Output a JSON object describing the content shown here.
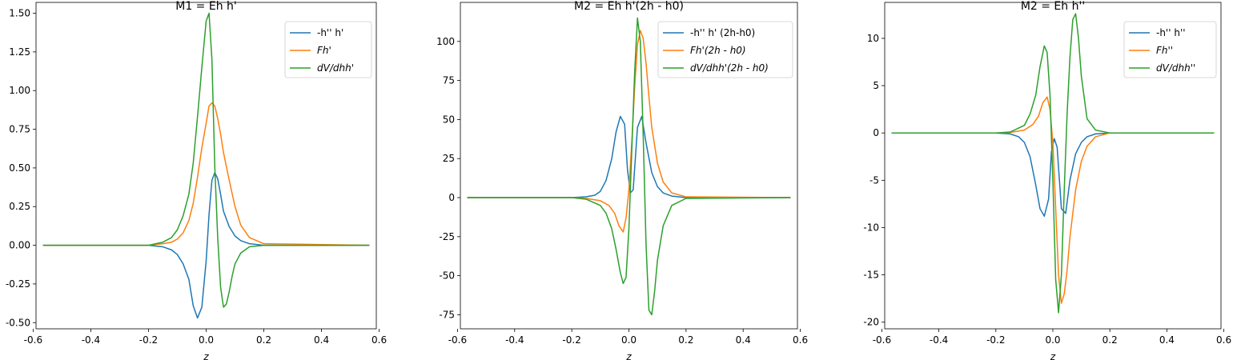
{
  "figure": {
    "colors": {
      "c0": "#1f77b4",
      "c1": "#ff7f0e",
      "c2": "#2ca02c",
      "axis": "#000000"
    }
  },
  "chart_data": [
    {
      "type": "line",
      "title": "M1 = Eh h'",
      "xlabel": "z",
      "ylabel": "",
      "xlim": [
        -0.59,
        0.59
      ],
      "ylim": [
        -0.54,
        1.57
      ],
      "xticks": [
        -0.6,
        -0.4,
        -0.2,
        0.0,
        0.2,
        0.4,
        0.6
      ],
      "xtick_labels": [
        "-0.6",
        "-0.4",
        "-0.2",
        "0.0",
        "0.2",
        "0.4",
        "0.6"
      ],
      "yticks": [
        -0.5,
        -0.25,
        0.0,
        0.25,
        0.5,
        0.75,
        1.0,
        1.25,
        1.5
      ],
      "ytick_labels": [
        "-0.50",
        "-0.25",
        "0.00",
        "0.25",
        "0.50",
        "0.75",
        "1.00",
        "1.25",
        "1.50"
      ],
      "grid": false,
      "legend_position": "top-right",
      "series": [
        {
          "name": "-h'' h'",
          "color": "#1f77b4",
          "x": [
            -0.566,
            -0.2,
            -0.15,
            -0.12,
            -0.1,
            -0.08,
            -0.06,
            -0.045,
            -0.03,
            -0.015,
            0.0,
            0.01,
            0.02,
            0.03,
            0.04,
            0.05,
            0.06,
            0.08,
            0.1,
            0.12,
            0.15,
            0.2,
            0.566
          ],
          "y": [
            0.0,
            0.0,
            -0.01,
            -0.03,
            -0.06,
            -0.12,
            -0.22,
            -0.39,
            -0.47,
            -0.4,
            -0.1,
            0.2,
            0.42,
            0.47,
            0.43,
            0.33,
            0.22,
            0.12,
            0.06,
            0.03,
            0.01,
            0.0,
            0.0
          ]
        },
        {
          "name": "Fh'",
          "color": "#ff7f0e",
          "x": [
            -0.566,
            -0.2,
            -0.15,
            -0.12,
            -0.1,
            -0.08,
            -0.06,
            -0.045,
            -0.03,
            -0.015,
            0.0,
            0.01,
            0.02,
            0.03,
            0.04,
            0.05,
            0.06,
            0.08,
            0.1,
            0.12,
            0.15,
            0.2,
            0.566
          ],
          "y": [
            0.0,
            0.0,
            0.01,
            0.02,
            0.04,
            0.08,
            0.16,
            0.27,
            0.44,
            0.63,
            0.79,
            0.9,
            0.92,
            0.9,
            0.82,
            0.72,
            0.6,
            0.42,
            0.25,
            0.13,
            0.05,
            0.01,
            0.0
          ]
        },
        {
          "name": "dV/dhh'",
          "color": "#2ca02c",
          "x": [
            -0.566,
            -0.2,
            -0.15,
            -0.12,
            -0.1,
            -0.08,
            -0.06,
            -0.045,
            -0.03,
            -0.015,
            0.0,
            0.01,
            0.02,
            0.03,
            0.04,
            0.05,
            0.06,
            0.07,
            0.08,
            0.09,
            0.1,
            0.12,
            0.15,
            0.2,
            0.566
          ],
          "y": [
            0.0,
            0.0,
            0.02,
            0.05,
            0.1,
            0.19,
            0.33,
            0.53,
            0.83,
            1.15,
            1.45,
            1.5,
            1.2,
            0.5,
            0.05,
            -0.27,
            -0.4,
            -0.38,
            -0.3,
            -0.2,
            -0.12,
            -0.05,
            -0.01,
            0.0,
            0.0
          ]
        }
      ]
    },
    {
      "type": "line",
      "title": "M2 = Eh h'(2h - h0)",
      "xlabel": "z",
      "ylabel": "",
      "xlim": [
        -0.59,
        0.59
      ],
      "ylim": [
        -84,
        125
      ],
      "xticks": [
        -0.6,
        -0.4,
        -0.2,
        0.0,
        0.2,
        0.4,
        0.6
      ],
      "xtick_labels": [
        "-0.6",
        "-0.4",
        "-0.2",
        "0.0",
        "0.2",
        "0.4",
        "0.6"
      ],
      "yticks": [
        -75,
        -50,
        -25,
        0,
        25,
        50,
        75,
        100
      ],
      "ytick_labels": [
        "-75",
        "-50",
        "-25",
        "0",
        "25",
        "50",
        "75",
        "100"
      ],
      "grid": false,
      "legend_position": "top-right",
      "series": [
        {
          "name": "-h'' h' (2h-h0)",
          "color": "#1f77b4",
          "x": [
            -0.566,
            -0.2,
            -0.15,
            -0.12,
            -0.1,
            -0.08,
            -0.06,
            -0.045,
            -0.03,
            -0.015,
            -0.005,
            0.005,
            0.015,
            0.03,
            0.045,
            0.06,
            0.08,
            0.1,
            0.12,
            0.15,
            0.2,
            0.566
          ],
          "y": [
            0.0,
            0.0,
            0.5,
            1.5,
            4,
            11,
            25,
            42,
            52,
            47,
            18,
            3,
            5,
            45,
            52,
            35,
            16,
            7,
            3,
            1,
            0.0,
            0.0
          ]
        },
        {
          "name": "Fh'(2h - h0)",
          "color": "#ff7f0e",
          "x": [
            -0.566,
            -0.2,
            -0.15,
            -0.1,
            -0.07,
            -0.05,
            -0.035,
            -0.02,
            -0.01,
            0.0,
            0.01,
            0.02,
            0.03,
            0.04,
            0.05,
            0.06,
            0.07,
            0.08,
            0.1,
            0.12,
            0.15,
            0.2,
            0.566
          ],
          "y": [
            0.0,
            0.0,
            -0.5,
            -2,
            -5,
            -10,
            -18,
            -22,
            -13,
            5,
            35,
            70,
            98,
            107,
            102,
            86,
            65,
            45,
            22,
            10,
            3,
            0.5,
            0.0
          ]
        },
        {
          "name": "dV/dhh'(2h - h0)",
          "color": "#2ca02c",
          "x": [
            -0.566,
            -0.2,
            -0.15,
            -0.1,
            -0.08,
            -0.06,
            -0.045,
            -0.03,
            -0.02,
            -0.01,
            0.0,
            0.01,
            0.02,
            0.03,
            0.04,
            0.05,
            0.06,
            0.07,
            0.08,
            0.09,
            0.1,
            0.12,
            0.15,
            0.2,
            0.566
          ],
          "y": [
            0.0,
            0.0,
            -1,
            -5,
            -10,
            -20,
            -33,
            -48,
            -55,
            -51,
            -20,
            30,
            80,
            115,
            100,
            40,
            -30,
            -72,
            -75,
            -60,
            -40,
            -18,
            -5,
            -0.5,
            0.0
          ]
        }
      ]
    },
    {
      "type": "line",
      "title": "M2 = Eh h''",
      "xlabel": "z",
      "ylabel": "",
      "xlim": [
        -0.59,
        0.59
      ],
      "ylim": [
        -20.7,
        13.8
      ],
      "xticks": [
        -0.6,
        -0.4,
        -0.2,
        0.0,
        0.2,
        0.4,
        0.6
      ],
      "xtick_labels": [
        "-0.6",
        "-0.4",
        "-0.2",
        "0.0",
        "0.2",
        "0.4",
        "0.6"
      ],
      "yticks": [
        -20,
        -15,
        -10,
        -5,
        0,
        5,
        10
      ],
      "ytick_labels": [
        "-20",
        "-15",
        "-10",
        "-5",
        "0",
        "5",
        "10"
      ],
      "grid": false,
      "legend_position": "top-right",
      "series": [
        {
          "name": "-h'' h''",
          "color": "#1f77b4",
          "x": [
            -0.566,
            -0.2,
            -0.15,
            -0.12,
            -0.1,
            -0.08,
            -0.06,
            -0.045,
            -0.03,
            -0.015,
            -0.005,
            0.005,
            0.015,
            0.03,
            0.045,
            0.06,
            0.08,
            0.1,
            0.12,
            0.15,
            0.2,
            0.566
          ],
          "y": [
            0.0,
            0.0,
            -0.1,
            -0.4,
            -1,
            -2.5,
            -5.5,
            -8,
            -8.8,
            -7,
            -2,
            -0.6,
            -1.5,
            -8,
            -8.5,
            -5,
            -2.2,
            -1,
            -0.4,
            -0.1,
            0.0,
            0.0
          ]
        },
        {
          "name": "Fh''",
          "color": "#ff7f0e",
          "x": [
            -0.566,
            -0.2,
            -0.15,
            -0.1,
            -0.07,
            -0.05,
            -0.035,
            -0.02,
            -0.01,
            0.0,
            0.01,
            0.02,
            0.03,
            0.04,
            0.05,
            0.06,
            0.08,
            0.1,
            0.12,
            0.15,
            0.2,
            0.566
          ],
          "y": [
            0.0,
            0.0,
            0.05,
            0.3,
            0.9,
            1.8,
            3.2,
            3.8,
            2.5,
            -1,
            -8,
            -15,
            -18,
            -17,
            -14.5,
            -11,
            -6,
            -3,
            -1.4,
            -0.4,
            0.0,
            0.0
          ]
        },
        {
          "name": "dV/dhh''",
          "color": "#2ca02c",
          "x": [
            -0.566,
            -0.2,
            -0.15,
            -0.1,
            -0.08,
            -0.06,
            -0.045,
            -0.03,
            -0.02,
            -0.01,
            0.0,
            0.01,
            0.02,
            0.03,
            0.04,
            0.05,
            0.06,
            0.07,
            0.08,
            0.09,
            0.1,
            0.12,
            0.15,
            0.2,
            0.566
          ],
          "y": [
            0.0,
            0.0,
            0.1,
            0.8,
            2,
            4,
            7,
            9.2,
            8.5,
            4,
            -5,
            -15.5,
            -19,
            -15,
            -6,
            2,
            8,
            12,
            12.6,
            10,
            6,
            1.5,
            0.3,
            0.0,
            0.0
          ]
        }
      ]
    }
  ]
}
